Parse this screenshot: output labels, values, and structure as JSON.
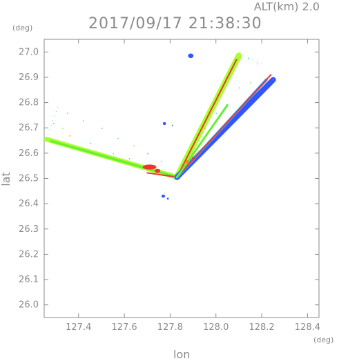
{
  "header": {
    "alt_label": "ALT(km)  2.0",
    "timestamp": "2017/09/17 21:38:30"
  },
  "colors": {
    "axis": "#8a8a8a",
    "text": "#8a8a8a",
    "yellow_green": "#aaff33",
    "green": "#66ee33",
    "red": "#ee3333",
    "orange": "#ff8800",
    "blue": "#3355ff",
    "light_blue": "#33aaff",
    "cyan": "#33dddd"
  },
  "chart_data": {
    "type": "scatter",
    "xlabel": "lon",
    "ylabel": "lat",
    "x_unit": "(deg)",
    "y_unit": "(deg)",
    "xlim": [
      127.25,
      128.45
    ],
    "ylim": [
      25.95,
      27.05
    ],
    "x_ticks": [
      "127.4",
      "127.6",
      "127.8",
      "128.0",
      "128.2",
      "128.4"
    ],
    "y_ticks": [
      "27.0",
      "26.9",
      "26.8",
      "26.7",
      "26.6",
      "26.5",
      "26.4",
      "26.3",
      "26.2",
      "26.1",
      "26.0"
    ],
    "grid": false,
    "origin": [
      127.83,
      26.505
    ],
    "beams": [
      {
        "name": "west",
        "corner_a": [
          127.26,
          26.655
        ],
        "corner_b": [
          127.31,
          26.785
        ],
        "swaths": [
          {
            "color": "yellow_green",
            "from": [
              127.26,
              26.655
            ],
            "width": 7
          },
          {
            "color": "green",
            "from": [
              127.28,
              26.648
            ],
            "width": 3
          },
          {
            "color": "red",
            "from": [
              127.7,
              26.522
            ],
            "width": 2
          }
        ]
      },
      {
        "name": "north-east",
        "corner_a": [
          128.12,
          26.985
        ],
        "corner_b": [
          128.2,
          26.955
        ],
        "swaths": [
          {
            "color": "yellow_green",
            "from": [
              128.1,
              26.985
            ],
            "width": 9
          },
          {
            "color": "red",
            "from": [
              128.09,
              26.97
            ],
            "width": 2
          }
        ]
      },
      {
        "name": "east",
        "corner_a": [
          128.25,
          26.91
        ],
        "corner_b": [
          128.25,
          26.885
        ],
        "swaths": [
          {
            "color": "blue",
            "from": [
              128.25,
              26.89
            ],
            "width": 8
          },
          {
            "color": "light_blue",
            "from": [
              128.22,
              26.89
            ],
            "width": 4
          },
          {
            "color": "red",
            "from": [
              128.24,
              26.91
            ],
            "width": 2
          },
          {
            "color": "green",
            "from": [
              128.05,
              26.79
            ],
            "width": 3
          }
        ]
      }
    ],
    "echo_blobs": [
      {
        "color": "blue",
        "center": [
          127.89,
          26.985
        ],
        "rx": 0.012,
        "ry": 0.009
      },
      {
        "color": "blue",
        "center": [
          127.775,
          26.717
        ],
        "rx": 0.007,
        "ry": 0.006
      },
      {
        "color": "blue",
        "center": [
          127.77,
          26.43
        ],
        "rx": 0.008,
        "ry": 0.006
      },
      {
        "color": "blue",
        "center": [
          127.79,
          26.42
        ],
        "rx": 0.004,
        "ry": 0.004
      },
      {
        "color": "blue",
        "center": [
          127.81,
          26.71
        ],
        "rx": 0.002,
        "ry": 0.003
      },
      {
        "color": "red",
        "center": [
          127.71,
          26.545
        ],
        "rx": 0.03,
        "ry": 0.01
      },
      {
        "color": "red",
        "center": [
          127.745,
          26.53
        ],
        "rx": 0.012,
        "ry": 0.008
      },
      {
        "color": "orange",
        "center": [
          127.875,
          26.565
        ],
        "rx": 0.006,
        "ry": 0.008
      },
      {
        "color": "red",
        "center": [
          127.9,
          26.58
        ],
        "rx": 0.004,
        "ry": 0.006
      }
    ],
    "sparse_points": [
      [
        127.35,
        26.76
      ],
      [
        127.42,
        26.73
      ],
      [
        127.5,
        26.7
      ],
      [
        127.57,
        26.66
      ],
      [
        127.64,
        26.63
      ],
      [
        127.7,
        26.6
      ],
      [
        127.76,
        26.57
      ],
      [
        127.33,
        26.7
      ],
      [
        127.29,
        26.72
      ],
      [
        128.14,
        26.975
      ],
      [
        128.18,
        26.955
      ],
      [
        127.36,
        26.67
      ],
      [
        127.45,
        26.64
      ],
      [
        127.55,
        26.6
      ],
      [
        127.62,
        26.58
      ],
      [
        128.1,
        26.86
      ],
      [
        128.15,
        26.88
      ],
      [
        127.95,
        26.7
      ],
      [
        128.0,
        26.76
      ]
    ]
  }
}
